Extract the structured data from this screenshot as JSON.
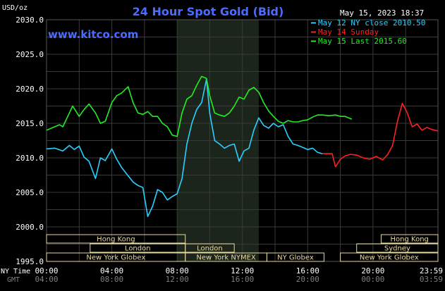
{
  "header": {
    "title": "24 Hour Spot Gold (Bid)",
    "units": "USD/oz",
    "timestamp": "May 15, 2023 18:37",
    "website": "www.kitco.com"
  },
  "footer": {
    "ny_time_label": "NY Time",
    "gmt_label": "GMT"
  },
  "colors": {
    "background": "#000000",
    "title": "#4a6cff",
    "website": "#4a6cff",
    "grid": "#3a3a3a",
    "axis_text": "#ffffff",
    "gmt_text": "#7f7f7f",
    "highlight_band": "#1c251c",
    "session_box": "#e8d9a0",
    "series_may12": "#2ad0ff",
    "series_may14": "#ff2020",
    "series_may15": "#22ee22"
  },
  "sessions": [
    {
      "name": "Hong Kong",
      "start": 0.0,
      "end": 8.5,
      "row": 0
    },
    {
      "name": "London",
      "start": 2.67,
      "end": 8.5,
      "row": 1
    },
    {
      "name": "New York Globex",
      "start": 0.0,
      "end": 8.5,
      "row": 2
    },
    {
      "name": "London",
      "start": 8.5,
      "end": 11.5,
      "row": 1
    },
    {
      "name": "New York NYMEX",
      "start": 8.5,
      "end": 13.5,
      "row": 2
    },
    {
      "name": "NY Globex",
      "start": 13.5,
      "end": 17.0,
      "row": 2
    },
    {
      "name": "Hong Kong",
      "start": 20.5,
      "end": 23.98,
      "row": 0
    },
    {
      "name": "Sydney",
      "start": 19.0,
      "end": 23.98,
      "row": 1
    },
    {
      "name": "New York Globex",
      "start": 18.0,
      "end": 23.98,
      "row": 2
    }
  ],
  "chart_data": {
    "type": "line",
    "title": "24 Hour Spot Gold (Bid)",
    "ylabel": "USD/oz",
    "xlabel": "",
    "ylim": [
      1995.0,
      2030.0
    ],
    "xlim": [
      0,
      23.98
    ],
    "y_ticks": [
      "1995.0",
      "2000.0",
      "2005.0",
      "2010.0",
      "2015.0",
      "2020.0",
      "2025.0",
      "2030.0"
    ],
    "x_ticks_ny": [
      "00:00",
      "04:00",
      "08:00",
      "12:00",
      "16:00",
      "20:00",
      "23:59"
    ],
    "x_ticks_gmt": [
      "04:00",
      "08:00",
      "12:00",
      "16:00",
      "20:00",
      "00:00",
      "03:59"
    ],
    "x_tick_hours": [
      0,
      4,
      8,
      12,
      16,
      20,
      23.98
    ],
    "grid": true,
    "highlight_range": [
      8.0,
      13.0
    ],
    "legend_position": "top-right",
    "series": [
      {
        "name": "May 12 NY close 2010.50",
        "color": "#2ad0ff",
        "x": [
          0,
          0.5,
          1.0,
          1.4,
          1.7,
          2.0,
          2.3,
          2.6,
          3.0,
          3.3,
          3.6,
          4.0,
          4.3,
          4.6,
          5.0,
          5.3,
          5.6,
          5.9,
          6.2,
          6.5,
          6.8,
          7.1,
          7.4,
          7.7,
          8.0,
          8.3,
          8.6,
          8.9,
          9.2,
          9.5,
          9.8,
          10.0,
          10.3,
          10.6,
          10.9,
          11.2,
          11.5,
          11.8,
          12.1,
          12.4,
          12.7,
          13.0,
          13.3,
          13.6,
          13.9,
          14.2,
          14.5,
          14.8,
          15.1,
          15.4,
          15.7,
          16.0,
          16.3,
          16.6,
          16.9
        ],
        "y": [
          2011.3,
          2011.4,
          2011.0,
          2011.8,
          2011.2,
          2011.7,
          2010.1,
          2009.5,
          2007.0,
          2010.0,
          2009.6,
          2011.3,
          2009.8,
          2008.6,
          2007.4,
          2006.5,
          2006.0,
          2005.7,
          2001.5,
          2003.0,
          2005.4,
          2005.0,
          2003.9,
          2004.4,
          2004.8,
          2007.0,
          2012.0,
          2015.0,
          2017.0,
          2018.0,
          2021.4,
          2016.5,
          2012.5,
          2012.0,
          2011.4,
          2011.8,
          2012.0,
          2009.5,
          2011.0,
          2011.4,
          2014.0,
          2015.8,
          2014.7,
          2014.3,
          2015.0,
          2014.5,
          2014.8,
          2013.1,
          2012.0,
          2011.8,
          2011.5,
          2011.2,
          2011.4,
          2010.8,
          2010.6
        ]
      },
      {
        "name": "May 14 Sunday",
        "color": "#ff2020",
        "x": [
          16.9,
          17.5,
          17.7,
          18.0,
          18.3,
          18.6,
          19.0,
          19.4,
          19.8,
          20.2,
          20.6,
          20.9,
          21.2,
          21.5,
          21.8,
          22.1,
          22.4,
          22.7,
          23.0,
          23.3,
          23.6,
          23.98
        ],
        "y": [
          2010.6,
          2010.6,
          2008.7,
          2009.8,
          2010.3,
          2010.5,
          2010.4,
          2010.0,
          2009.8,
          2010.2,
          2009.7,
          2010.5,
          2011.8,
          2015.3,
          2017.9,
          2016.5,
          2014.5,
          2014.9,
          2014.0,
          2014.4,
          2014.1,
          2013.9
        ]
      },
      {
        "name": "May 15 Last 2015.60",
        "color": "#22ee22",
        "x": [
          0,
          0.5,
          0.8,
          1.0,
          1.3,
          1.6,
          2.0,
          2.3,
          2.6,
          3.0,
          3.3,
          3.6,
          4.0,
          4.3,
          4.6,
          5.0,
          5.3,
          5.6,
          5.9,
          6.2,
          6.5,
          6.8,
          7.1,
          7.4,
          7.7,
          8.0,
          8.3,
          8.6,
          8.9,
          9.2,
          9.5,
          9.8,
          10.0,
          10.3,
          10.6,
          10.9,
          11.2,
          11.5,
          11.8,
          12.1,
          12.4,
          12.7,
          13.0,
          13.3,
          13.6,
          13.9,
          14.2,
          14.5,
          14.8,
          15.1,
          15.4,
          15.7,
          16.0,
          16.3,
          16.6,
          16.9,
          17.3,
          17.7,
          18.0,
          18.3,
          18.7
        ],
        "y": [
          2014.0,
          2014.5,
          2014.8,
          2014.5,
          2016.0,
          2017.5,
          2016.0,
          2017.0,
          2017.8,
          2016.5,
          2015.0,
          2015.3,
          2018.0,
          2019.0,
          2019.4,
          2020.3,
          2018.0,
          2016.5,
          2016.3,
          2016.7,
          2016.0,
          2016.0,
          2015.0,
          2014.5,
          2013.3,
          2013.1,
          2016.5,
          2018.5,
          2019.0,
          2020.5,
          2021.8,
          2021.5,
          2019.0,
          2016.5,
          2016.2,
          2016.0,
          2016.5,
          2017.5,
          2018.8,
          2018.5,
          2019.8,
          2020.2,
          2019.5,
          2018.0,
          2016.8,
          2016.0,
          2015.3,
          2015.0,
          2015.4,
          2015.2,
          2015.2,
          2015.4,
          2015.5,
          2015.9,
          2016.2,
          2016.2,
          2016.1,
          2016.2,
          2016.0,
          2016.0,
          2015.6
        ]
      }
    ]
  }
}
